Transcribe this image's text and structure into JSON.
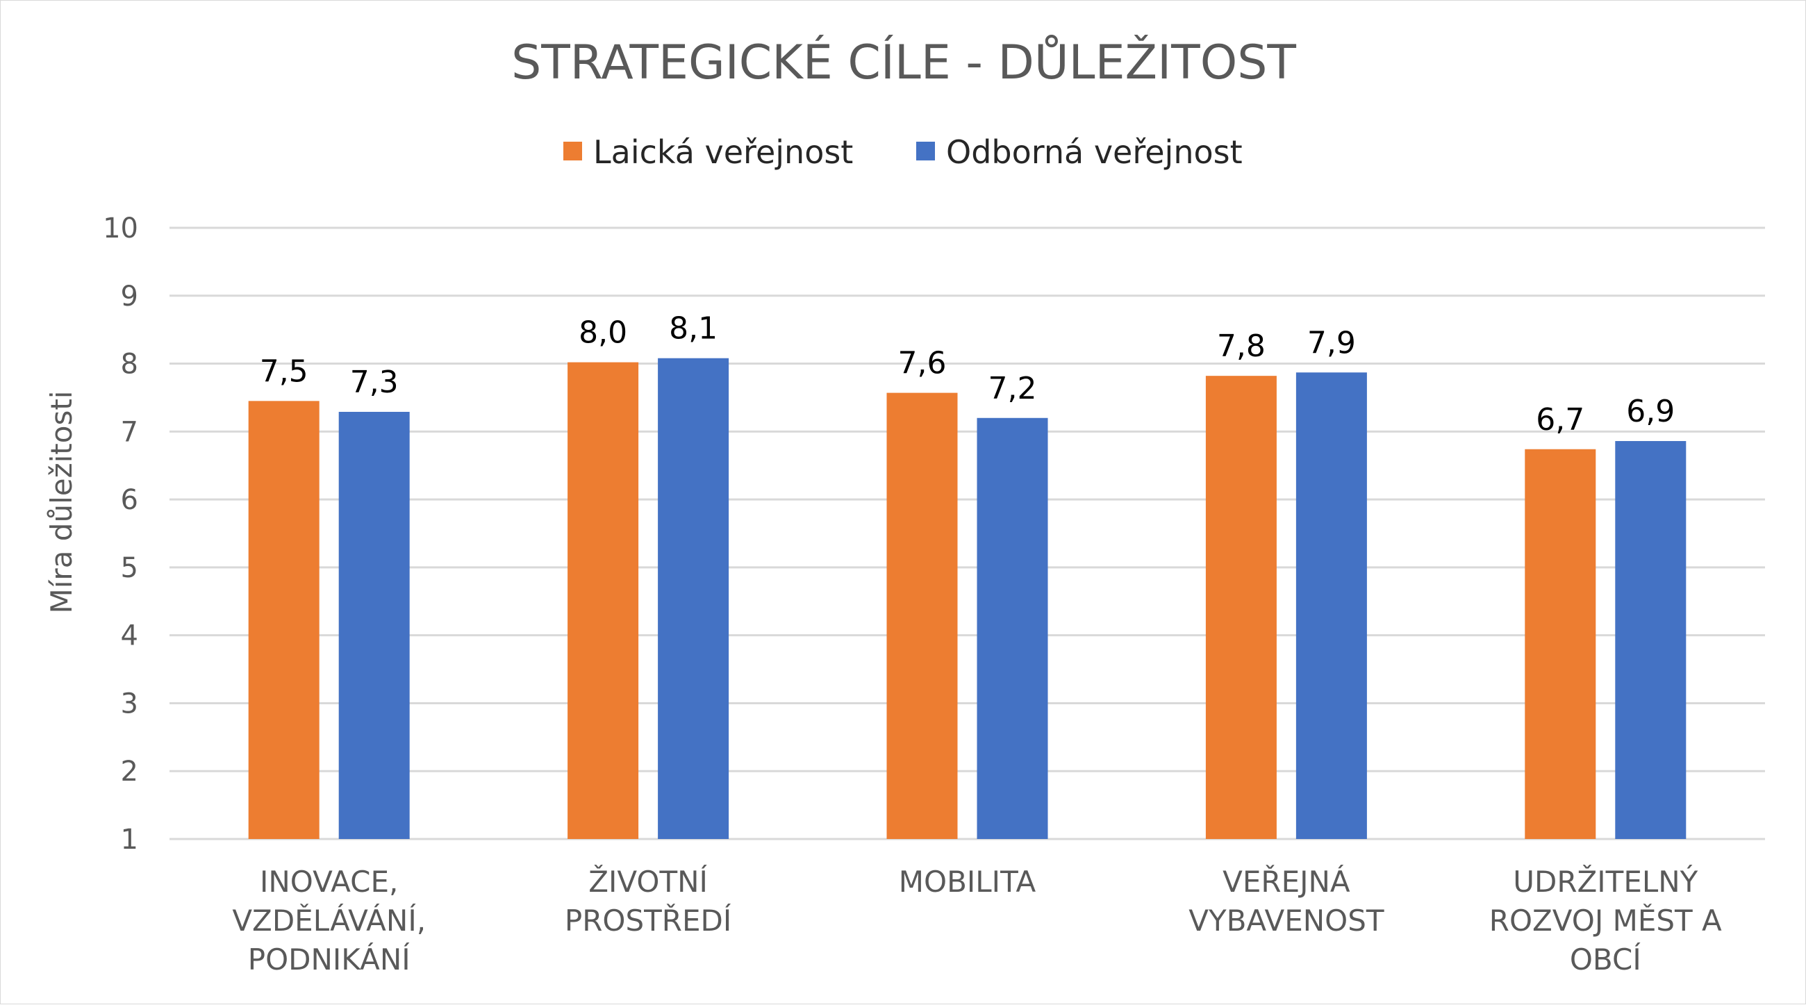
{
  "chart_data": {
    "type": "bar",
    "title": "STRATEGICKÉ CÍLE - DŮLEŽITOST",
    "ylabel": "Míra důležitosti",
    "xlabel": "",
    "ylim": [
      1,
      10
    ],
    "yticks": [
      1,
      2,
      3,
      4,
      5,
      6,
      7,
      8,
      9,
      10
    ],
    "grid": true,
    "legend_position": "top",
    "categories": [
      [
        "INOVACE,",
        "VZDĚLÁVÁNÍ,",
        "PODNIKÁNÍ"
      ],
      [
        "ŽIVOTNÍ",
        "PROSTŘEDÍ"
      ],
      [
        "MOBILITA"
      ],
      [
        "VEŘEJNÁ",
        "VYBAVENOST"
      ],
      [
        "UDRŽITELNÝ",
        "ROZVOJ MĚST A",
        "OBCÍ"
      ]
    ],
    "series": [
      {
        "name": "Laická veřejnost",
        "color": "#ED7D31",
        "values": [
          7.45,
          8.02,
          7.57,
          7.82,
          6.74
        ],
        "labels": [
          "7,5",
          "8,0",
          "7,6",
          "7,8",
          "6,7"
        ]
      },
      {
        "name": "Odborná veřejnost",
        "color": "#4472C4",
        "values": [
          7.29,
          8.08,
          7.2,
          7.87,
          6.86
        ],
        "labels": [
          "7,3",
          "8,1",
          "7,2",
          "7,9",
          "6,9"
        ]
      }
    ]
  }
}
